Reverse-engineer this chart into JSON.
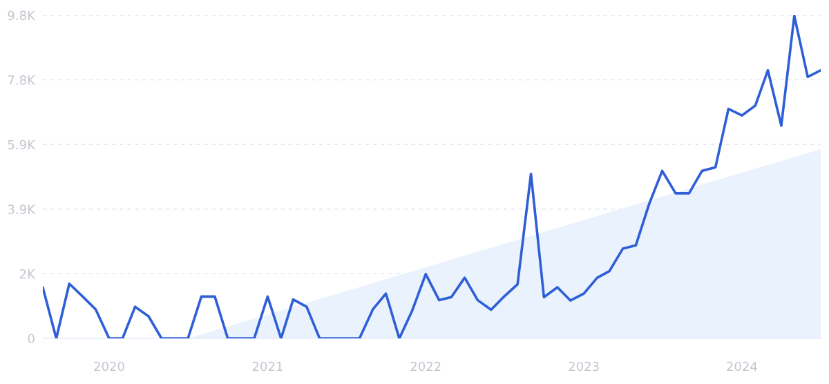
{
  "chart_data": {
    "type": "line",
    "x": [
      "2019-08",
      "2019-09",
      "2019-10",
      "2019-11",
      "2019-12",
      "2020-01",
      "2020-02",
      "2020-03",
      "2020-04",
      "2020-05",
      "2020-06",
      "2020-07",
      "2020-08",
      "2020-09",
      "2020-10",
      "2020-11",
      "2020-12",
      "2021-01",
      "2021-02",
      "2021-03",
      "2021-04",
      "2021-05",
      "2021-06",
      "2021-07",
      "2021-08",
      "2021-09",
      "2021-10",
      "2021-11",
      "2021-12",
      "2022-01",
      "2022-02",
      "2022-03",
      "2022-04",
      "2022-05",
      "2022-06",
      "2022-07",
      "2022-08",
      "2022-09",
      "2022-10",
      "2022-11",
      "2022-12",
      "2023-01",
      "2023-02",
      "2023-03",
      "2023-04",
      "2023-05",
      "2023-06",
      "2023-07",
      "2023-08",
      "2023-09",
      "2023-10",
      "2023-11",
      "2023-12",
      "2024-01",
      "2024-02",
      "2024-03",
      "2024-04",
      "2024-05",
      "2024-06",
      "2024-07"
    ],
    "series": [
      {
        "type": "area",
        "color": "#eaf2fd",
        "x": [
          "2020-07",
          "2024-07"
        ],
        "values": [
          0,
          5740
        ]
      },
      {
        "color": "#2f5fd7",
        "values": [
          1540,
          0,
          1660,
          1270,
          880,
          0,
          0,
          960,
          670,
          0,
          0,
          0,
          1270,
          1270,
          0,
          0,
          0,
          1270,
          0,
          1180,
          960,
          0,
          0,
          0,
          0,
          880,
          1360,
          0,
          850,
          1950,
          1160,
          1250,
          1840,
          1160,
          870,
          1270,
          1640,
          4990,
          1250,
          1550,
          1150,
          1360,
          1840,
          2040,
          2720,
          2820,
          4080,
          5080,
          4400,
          4400,
          5080,
          5190,
          6960,
          6760,
          7060,
          8130,
          6450,
          9780,
          7930,
          8130
        ]
      }
    ],
    "xlim": [
      "2019-08",
      "2024-07"
    ],
    "xticks": [
      {
        "value": "2020-01",
        "label": "2020"
      },
      {
        "value": "2021-01",
        "label": "2021"
      },
      {
        "value": "2022-01",
        "label": "2022"
      },
      {
        "value": "2023-01",
        "label": "2023"
      },
      {
        "value": "2024-01",
        "label": "2024"
      }
    ],
    "ylim": [
      0,
      9800
    ],
    "yticks": [
      0,
      {
        "value": 1960,
        "label": "2K"
      },
      {
        "value": 3920,
        "label": "3.9K"
      },
      {
        "value": 5880,
        "label": "5.9K"
      },
      {
        "value": 7840,
        "label": "7.8K"
      },
      {
        "value": 9800,
        "label": "9.8K"
      }
    ],
    "grid": "y",
    "line_style": "solid",
    "marker": "none"
  }
}
